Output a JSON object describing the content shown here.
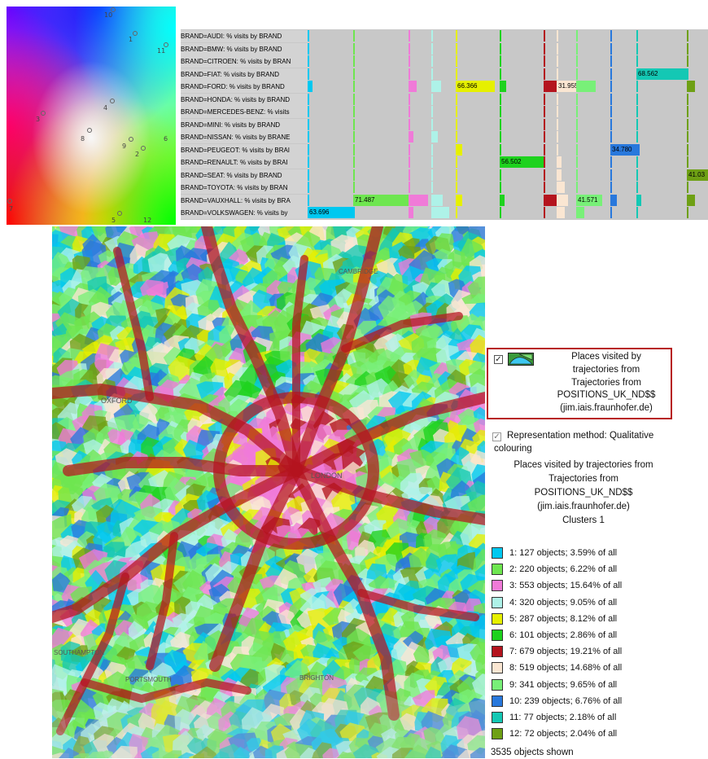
{
  "color_square": {
    "labels": [
      "10",
      "1",
      "11",
      "3",
      "4",
      "8",
      "9",
      "2",
      "6",
      "7",
      "5",
      "12"
    ]
  },
  "brand_table": {
    "rows": [
      "BRAND=AUDI: % visits by BRAND",
      "BRAND=BMW: % visits by BRAND",
      "BRAND=CITROEN: % visits by BRAN",
      "BRAND=FIAT: % visits by BRAND",
      "BRAND=FORD: % visits by BRAND",
      "BRAND=HONDA: % visits by BRAND",
      "BRAND=MERCEDES-BENZ: % visits",
      "BRAND=MINI: % visits by BRAND",
      "BRAND=NISSAN: % visits by BRANE",
      "BRAND=PEUGEOT: % visits by BRAI",
      "BRAND=RENAULT: % visits by BRAI",
      "BRAND=SEAT: % visits by BRAND",
      "BRAND=TOYOTA: % visits by BRAN",
      "BRAND=VAUXHALL: % visits by BRA",
      "BRAND=VOLKSWAGEN: % visits by"
    ],
    "values": {
      "ford_5": "66.366",
      "ford_7": "31.955",
      "fiat_11": "68.562",
      "peugeot_10": "34.780",
      "renault_6": "56.502",
      "seat_12": "41.03",
      "vauxhall_2": "71.487",
      "vauxhall_9": "41.571",
      "vw_1": "63.696"
    }
  },
  "legend": {
    "layer_title": "Places visited by trajectories from Trajectories from POSITIONS_UK_ND$$ (jim.iais.fraunhofer.de)",
    "layer_lines": [
      "Places visited by",
      "trajectories from",
      "Trajectories from",
      "POSITIONS_UK_ND$$",
      "(jim.iais.fraunhofer.de)"
    ],
    "rep_method_1": "Representation method: Qualitative",
    "rep_method_2": "colouring",
    "desc_lines": [
      "Places visited by trajectories from",
      "Trajectories from",
      "POSITIONS_UK_ND$$",
      "(jim.iais.fraunhofer.de)",
      "Clusters 1"
    ],
    "items": [
      {
        "label": "1: 127 objects; 3.59% of all",
        "color": "#00c8f0"
      },
      {
        "label": "2: 220 objects; 6.22% of all",
        "color": "#6ee650"
      },
      {
        "label": "3: 553 objects; 15.64% of all",
        "color": "#f07ad8"
      },
      {
        "label": "4: 320 objects; 9.05% of all",
        "color": "#aef2e8"
      },
      {
        "label": "5: 287 objects; 8.12% of all",
        "color": "#e6f000"
      },
      {
        "label": "6: 101 objects; 2.86% of all",
        "color": "#1ed21e"
      },
      {
        "label": "7: 679 objects; 19.21% of all",
        "color": "#b4141e"
      },
      {
        "label": "8: 519 objects; 14.68% of all",
        "color": "#fae6d2"
      },
      {
        "label": "9: 341 objects; 9.65% of all",
        "color": "#78f078"
      },
      {
        "label": "10: 239 objects; 6.76% of all",
        "color": "#2878dc"
      },
      {
        "label": "11: 77 objects; 2.18% of all",
        "color": "#14c8b4"
      },
      {
        "label": "12: 72 objects; 2.04% of all",
        "color": "#6ea014"
      }
    ],
    "footer": "3535 objects shown"
  },
  "map_labels": {
    "oxford": "OXFORD",
    "cambridge": "CAMBRIDGE",
    "london": "LONDON",
    "portsmouth": "PORTSMOUTH",
    "brighton": "BRIGHTON",
    "southampton": "SOUTHAMPTON"
  }
}
